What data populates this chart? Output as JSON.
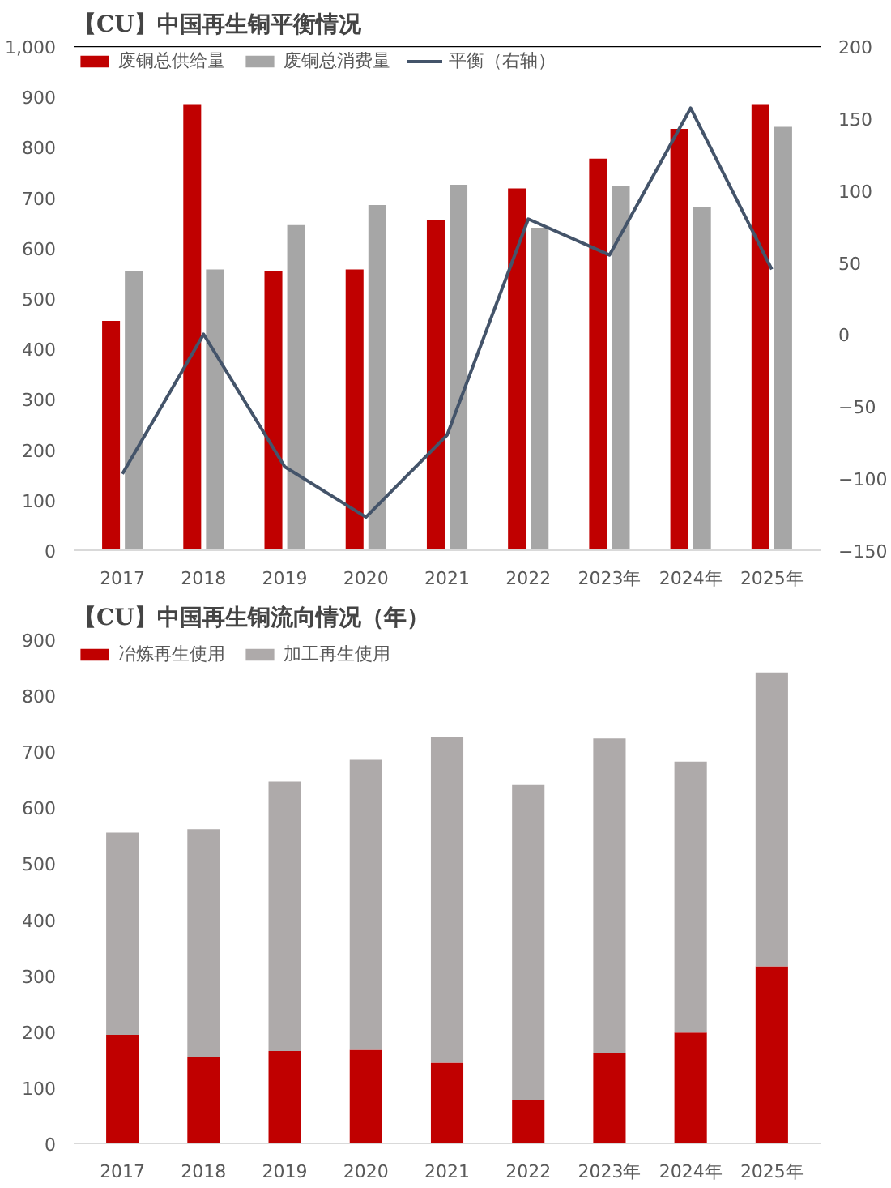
{
  "chart_data": [
    {
      "type": "bar",
      "title": "【CU】中国再生铜平衡情况",
      "categories": [
        "2017",
        "2018",
        "2019",
        "2020",
        "2021",
        "2022",
        "2023年",
        "2024年",
        "2025年"
      ],
      "series": [
        {
          "name": "废铜总供给量",
          "color": "#c00000",
          "values": [
            455,
            885,
            553,
            557,
            655,
            718,
            777,
            836,
            885
          ]
        },
        {
          "name": "废铜总消费量",
          "color": "#a6a6a6",
          "values": [
            553,
            557,
            645,
            685,
            725,
            640,
            723,
            680,
            840
          ]
        },
        {
          "name": "平衡（右轴）",
          "type": "line",
          "axis": "y2",
          "color": "#44546a",
          "values": [
            -97,
            0,
            -92,
            -127,
            -70,
            80,
            55,
            157,
            45
          ]
        }
      ],
      "ylim": [
        0,
        1000
      ],
      "yticks": [
        0,
        100,
        200,
        300,
        400,
        500,
        600,
        700,
        800,
        900,
        {
          "value": 1000,
          "label": "1,000"
        }
      ],
      "y2lim": [
        -150,
        200
      ],
      "y2ticks": [
        -150,
        -100,
        -50,
        0,
        50,
        100,
        150,
        200
      ],
      "ref_lines": [
        {
          "axis": "y",
          "value": 1000,
          "color": "#000000"
        }
      ],
      "legend": "top"
    },
    {
      "type": "bar",
      "title": "【CU】中国再生铜流向情况（年）",
      "stacked": true,
      "categories": [
        "2017",
        "2018",
        "2019",
        "2020",
        "2021",
        "2022",
        "2023年",
        "2024年",
        "2025年"
      ],
      "series": [
        {
          "name": "冶炼再生使用",
          "color": "#c00000",
          "values": [
            194,
            155,
            165,
            167,
            144,
            78,
            162,
            198,
            316
          ]
        },
        {
          "name": "加工再生使用",
          "color": "#aeaaaa",
          "values": [
            361,
            406,
            481,
            518,
            582,
            562,
            561,
            484,
            525
          ]
        }
      ],
      "ylim": [
        0,
        900
      ],
      "yticks": [
        0,
        100,
        200,
        300,
        400,
        500,
        600,
        700,
        800,
        900
      ],
      "legend": "top"
    }
  ]
}
